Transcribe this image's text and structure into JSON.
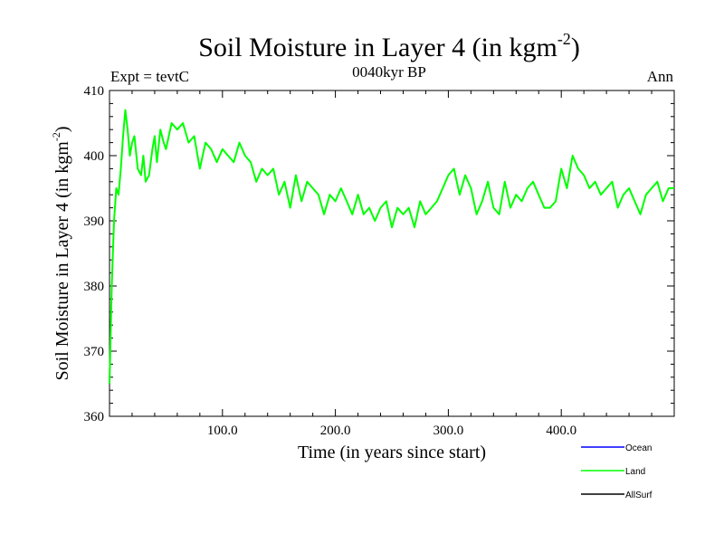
{
  "chart_data": {
    "type": "line",
    "title": "Soil Moisture in Layer 4 (in kgm",
    "title_sup": "-2",
    "title_close": ")",
    "left_label": "Expt = tevtC",
    "center_label": "0040kyr BP",
    "right_label": "Ann",
    "xlabel": "Time (in years since start)",
    "ylabel": "Soil Moisture in Layer 4 (in kgm",
    "ylabel_sup": "-2",
    "ylabel_close": ")",
    "xlim": [
      0,
      500
    ],
    "ylim": [
      360,
      410
    ],
    "x_ticks": [
      100,
      200,
      300,
      400
    ],
    "x_tick_labels": [
      "100.0",
      "200.0",
      "300.0",
      "400.0"
    ],
    "y_ticks": [
      360,
      370,
      380,
      390,
      400,
      410
    ],
    "y_tick_labels": [
      "360",
      "370",
      "380",
      "390",
      "400",
      "410"
    ],
    "grid": false,
    "legend_position": "bottom-right",
    "legend": [
      {
        "label": "Ocean",
        "color": "#0000ff"
      },
      {
        "label": "Land",
        "color": "#00ff00"
      },
      {
        "label": "AllSurf",
        "color": "#000000"
      }
    ],
    "series": [
      {
        "name": "Land",
        "color": "#00ff00",
        "x": [
          0,
          2,
          4,
          6,
          8,
          10,
          12,
          14,
          16,
          18,
          20,
          22,
          25,
          28,
          30,
          32,
          35,
          38,
          40,
          42,
          45,
          48,
          50,
          55,
          60,
          65,
          70,
          75,
          80,
          85,
          90,
          95,
          100,
          105,
          110,
          115,
          120,
          125,
          130,
          135,
          140,
          145,
          150,
          155,
          160,
          165,
          170,
          175,
          180,
          185,
          190,
          195,
          200,
          205,
          210,
          215,
          220,
          225,
          230,
          235,
          240,
          245,
          250,
          255,
          260,
          265,
          270,
          275,
          280,
          285,
          290,
          295,
          300,
          305,
          310,
          315,
          320,
          325,
          330,
          335,
          340,
          345,
          350,
          355,
          360,
          365,
          370,
          375,
          380,
          385,
          390,
          395,
          400,
          405,
          410,
          415,
          420,
          425,
          430,
          435,
          440,
          445,
          450,
          455,
          460,
          465,
          470,
          475,
          480,
          485,
          490,
          495,
          500
        ],
        "y": [
          365,
          380,
          390,
          395,
          394,
          398,
          403,
          407,
          404,
          400,
          402,
          403,
          398,
          397,
          400,
          396,
          397,
          401,
          403,
          399,
          404,
          402,
          401,
          405,
          404,
          405,
          402,
          403,
          398,
          402,
          401,
          399,
          401,
          400,
          399,
          402,
          400,
          399,
          396,
          398,
          397,
          398,
          394,
          396,
          392,
          397,
          393,
          396,
          395,
          394,
          391,
          394,
          393,
          395,
          393,
          391,
          394,
          391,
          392,
          390,
          392,
          393,
          389,
          392,
          391,
          392,
          389,
          393,
          391,
          392,
          393,
          395,
          397,
          398,
          394,
          397,
          395,
          391,
          393,
          396,
          392,
          391,
          396,
          392,
          394,
          393,
          395,
          396,
          394,
          392,
          392,
          393,
          398,
          395,
          400,
          398,
          397,
          395,
          396,
          394,
          395,
          396,
          392,
          394,
          395,
          393,
          391,
          394,
          395,
          396,
          393,
          395,
          395
        ]
      }
    ]
  }
}
